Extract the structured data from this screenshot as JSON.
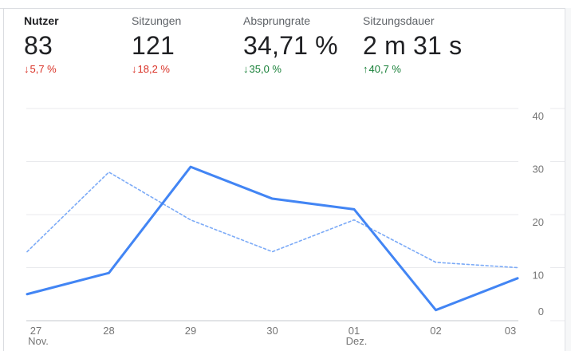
{
  "card": {
    "metrics": [
      {
        "id": "nutzer",
        "label": "Nutzer",
        "value": "83",
        "arrow": "↓",
        "delta": "5,7 %",
        "sentiment": "negative",
        "active": true
      },
      {
        "id": "sitzungen",
        "label": "Sitzungen",
        "value": "121",
        "arrow": "↓",
        "delta": "18,2 %",
        "sentiment": "negative",
        "active": false
      },
      {
        "id": "absprungrate",
        "label": "Absprungrate",
        "value": "34,71 %",
        "arrow": "↓",
        "delta": "35,0 %",
        "sentiment": "positive",
        "active": false
      },
      {
        "id": "sitzungsdauer",
        "label": "Sitzungsdauer",
        "value": "2 m 31 s",
        "arrow": "↑",
        "delta": "40,7 %",
        "sentiment": "positive",
        "active": false
      }
    ],
    "colors": {
      "negative": "#d93025",
      "positive": "#188038",
      "line_current": "#4285f4",
      "line_previous": "#7baaf7",
      "grid": "#e9eaed",
      "axis": "#c6c9cc",
      "tick_label": "#757575",
      "value_text": "#202124",
      "border": "#dadce0"
    }
  },
  "chart_data": {
    "type": "line",
    "title": "",
    "xlabel": "",
    "ylabel": "",
    "x_labels": [
      {
        "day": "27",
        "month": "Nov."
      },
      {
        "day": "28",
        "month": ""
      },
      {
        "day": "29",
        "month": ""
      },
      {
        "day": "30",
        "month": ""
      },
      {
        "day": "01",
        "month": "Dez."
      },
      {
        "day": "02",
        "month": ""
      },
      {
        "day": "03",
        "month": ""
      }
    ],
    "series": [
      {
        "name": "current",
        "style": "solid",
        "values": [
          5,
          9,
          29,
          23,
          21,
          2,
          8
        ]
      },
      {
        "name": "previous",
        "style": "dashed",
        "values": [
          13,
          28,
          19,
          13,
          19,
          11,
          10
        ]
      }
    ],
    "ylim": [
      0,
      40
    ],
    "yticks": [
      0,
      10,
      20,
      30,
      40
    ],
    "grid": true,
    "legend": "none"
  }
}
